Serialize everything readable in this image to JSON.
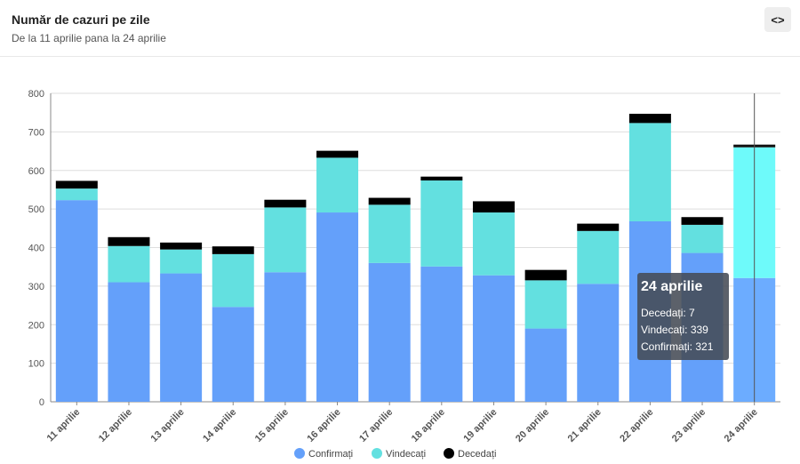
{
  "header": {
    "title": "Număr de cazuri pe zile",
    "subtitle": "De la 11 aprilie pana la 24 aprilie",
    "embed_icon": "code-brackets-icon",
    "embed_label": "<>"
  },
  "chart_data": {
    "type": "bar",
    "stacked": true,
    "categories": [
      "11 aprilie",
      "12 aprilie",
      "13 aprilie",
      "14 aprilie",
      "15 aprilie",
      "16 aprilie",
      "17 aprilie",
      "18 aprilie",
      "19 aprilie",
      "20 aprilie",
      "21 aprilie",
      "22 aprilie",
      "23 aprilie",
      "24 aprilie"
    ],
    "series": [
      {
        "name": "Confirmați",
        "color": "#64a0fa",
        "values": [
          523,
          310,
          333,
          246,
          336,
          491,
          360,
          351,
          328,
          190,
          306,
          468,
          386,
          321
        ]
      },
      {
        "name": "Vindecați",
        "color": "#63e0e0",
        "values": [
          30,
          94,
          62,
          137,
          168,
          142,
          151,
          223,
          163,
          125,
          137,
          255,
          73,
          339
        ]
      },
      {
        "name": "Decedați",
        "color": "#000000",
        "values": [
          20,
          23,
          18,
          20,
          20,
          18,
          18,
          10,
          29,
          27,
          19,
          24,
          20,
          7
        ]
      }
    ],
    "ylim": [
      0,
      800
    ],
    "yticks": [
      0,
      100,
      200,
      300,
      400,
      500,
      600,
      700,
      800
    ],
    "grid": true,
    "legend": "bottom-center",
    "highlighted_index": 13,
    "highlight_colors": {
      "Confirmați": "#6cacff",
      "Vindecați": "#6efafa",
      "Decedați": "#111111"
    }
  },
  "tooltip": {
    "title": "24 aprilie",
    "lines": [
      "Decedați: 7",
      "Vindecați: 339",
      "Confirmați: 321"
    ]
  }
}
